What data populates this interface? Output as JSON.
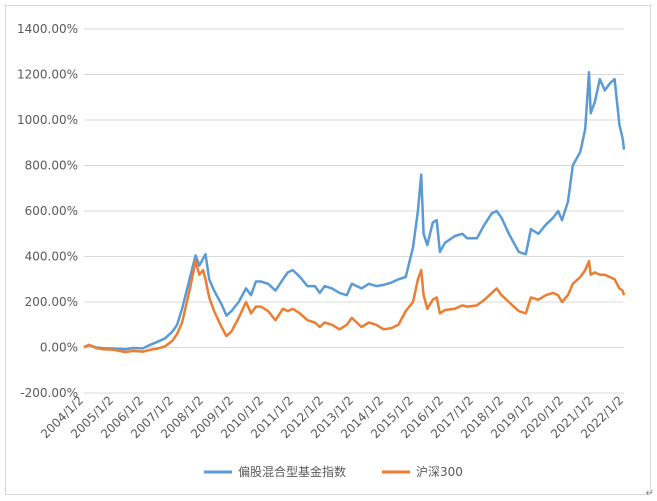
{
  "chart_data": {
    "type": "line",
    "title": "",
    "xlabel": "",
    "ylabel": "",
    "ylim": [
      -200,
      1400
    ],
    "y_ticks": [
      "1400.00%",
      "1200.00%",
      "1000.00%",
      "800.00%",
      "600.00%",
      "400.00%",
      "200.00%",
      "0.00%",
      "-200.00%"
    ],
    "x_ticks": [
      "2004/1/2",
      "2005/1/2",
      "2006/1/2",
      "2007/1/2",
      "2008/1/2",
      "2009/1/2",
      "2010/1/2",
      "2011/1/2",
      "2012/1/2",
      "2013/1/2",
      "2014/1/2",
      "2015/1/2",
      "2016/1/2",
      "2017/1/2",
      "2018/1/2",
      "2019/1/2",
      "2020/1/2",
      "2021/1/2",
      "2022/1/2"
    ],
    "grid": true,
    "legend_position": "bottom",
    "series": [
      {
        "name": "偏股混合型基金指数",
        "color": "#5b9bd5",
        "points": [
          [
            "2004-01-02",
            2
          ],
          [
            "2004-03-01",
            10
          ],
          [
            "2004-06-01",
            0
          ],
          [
            "2004-09-01",
            -3
          ],
          [
            "2005-01-01",
            -5
          ],
          [
            "2005-06-01",
            -8
          ],
          [
            "2005-09-01",
            -2
          ],
          [
            "2006-01-01",
            -4
          ],
          [
            "2006-04-01",
            12
          ],
          [
            "2006-07-01",
            25
          ],
          [
            "2006-10-01",
            40
          ],
          [
            "2007-01-01",
            70
          ],
          [
            "2007-03-01",
            100
          ],
          [
            "2007-05-01",
            170
          ],
          [
            "2007-08-01",
            300
          ],
          [
            "2007-10-15",
            405
          ],
          [
            "2007-12-01",
            360
          ],
          [
            "2008-01-15",
            390
          ],
          [
            "2008-02-15",
            410
          ],
          [
            "2008-04-01",
            300
          ],
          [
            "2008-06-01",
            250
          ],
          [
            "2008-09-01",
            190
          ],
          [
            "2008-11-01",
            140
          ],
          [
            "2009-01-01",
            160
          ],
          [
            "2009-04-01",
            200
          ],
          [
            "2009-07-01",
            260
          ],
          [
            "2009-09-01",
            230
          ],
          [
            "2009-11-01",
            290
          ],
          [
            "2010-01-01",
            290
          ],
          [
            "2010-04-01",
            280
          ],
          [
            "2010-07-01",
            250
          ],
          [
            "2010-10-01",
            300
          ],
          [
            "2010-12-01",
            330
          ],
          [
            "2011-02-01",
            340
          ],
          [
            "2011-05-01",
            310
          ],
          [
            "2011-08-01",
            270
          ],
          [
            "2011-11-01",
            270
          ],
          [
            "2012-01-01",
            240
          ],
          [
            "2012-03-01",
            270
          ],
          [
            "2012-06-01",
            260
          ],
          [
            "2012-09-01",
            240
          ],
          [
            "2012-12-01",
            230
          ],
          [
            "2013-02-01",
            280
          ],
          [
            "2013-06-01",
            260
          ],
          [
            "2013-09-01",
            280
          ],
          [
            "2013-12-01",
            270
          ],
          [
            "2014-03-01",
            275
          ],
          [
            "2014-06-01",
            285
          ],
          [
            "2014-09-01",
            300
          ],
          [
            "2014-12-01",
            310
          ],
          [
            "2015-03-01",
            440
          ],
          [
            "2015-05-01",
            600
          ],
          [
            "2015-06-10",
            760
          ],
          [
            "2015-07-10",
            500
          ],
          [
            "2015-08-25",
            450
          ],
          [
            "2015-11-01",
            550
          ],
          [
            "2015-12-20",
            560
          ],
          [
            "2016-01-28",
            420
          ],
          [
            "2016-04-01",
            460
          ],
          [
            "2016-08-01",
            490
          ],
          [
            "2016-11-01",
            500
          ],
          [
            "2017-01-01",
            480
          ],
          [
            "2017-05-01",
            480
          ],
          [
            "2017-08-01",
            540
          ],
          [
            "2017-11-01",
            590
          ],
          [
            "2018-01-01",
            600
          ],
          [
            "2018-03-01",
            570
          ],
          [
            "2018-06-01",
            500
          ],
          [
            "2018-10-01",
            420
          ],
          [
            "2018-12-28",
            410
          ],
          [
            "2019-03-01",
            520
          ],
          [
            "2019-06-01",
            500
          ],
          [
            "2019-09-01",
            540
          ],
          [
            "2019-12-01",
            570
          ],
          [
            "2020-02-01",
            600
          ],
          [
            "2020-03-20",
            560
          ],
          [
            "2020-06-01",
            640
          ],
          [
            "2020-08-01",
            800
          ],
          [
            "2020-11-01",
            860
          ],
          [
            "2021-01-01",
            960
          ],
          [
            "2021-02-18",
            1210
          ],
          [
            "2021-03-10",
            1030
          ],
          [
            "2021-05-01",
            1080
          ],
          [
            "2021-07-01",
            1180
          ],
          [
            "2021-09-01",
            1130
          ],
          [
            "2021-11-01",
            1160
          ],
          [
            "2022-01-01",
            1180
          ],
          [
            "2022-03-01",
            980
          ],
          [
            "2022-04-10",
            920
          ],
          [
            "2022-04-27",
            870
          ]
        ]
      },
      {
        "name": "沪深300",
        "color": "#ed7d31",
        "points": [
          [
            "2004-01-02",
            0
          ],
          [
            "2004-03-01",
            12
          ],
          [
            "2004-06-01",
            -2
          ],
          [
            "2004-09-01",
            -8
          ],
          [
            "2005-01-01",
            -10
          ],
          [
            "2005-06-01",
            -20
          ],
          [
            "2005-09-01",
            -15
          ],
          [
            "2006-01-01",
            -18
          ],
          [
            "2006-04-01",
            -10
          ],
          [
            "2006-07-01",
            -5
          ],
          [
            "2006-10-01",
            5
          ],
          [
            "2007-01-01",
            30
          ],
          [
            "2007-03-01",
            60
          ],
          [
            "2007-05-01",
            110
          ],
          [
            "2007-08-01",
            250
          ],
          [
            "2007-10-15",
            380
          ],
          [
            "2007-12-01",
            320
          ],
          [
            "2008-01-15",
            340
          ],
          [
            "2008-02-15",
            300
          ],
          [
            "2008-04-01",
            220
          ],
          [
            "2008-06-01",
            160
          ],
          [
            "2008-09-01",
            90
          ],
          [
            "2008-11-01",
            50
          ],
          [
            "2009-01-01",
            70
          ],
          [
            "2009-04-01",
            130
          ],
          [
            "2009-07-01",
            200
          ],
          [
            "2009-09-01",
            150
          ],
          [
            "2009-11-01",
            180
          ],
          [
            "2010-01-01",
            180
          ],
          [
            "2010-04-01",
            160
          ],
          [
            "2010-07-01",
            120
          ],
          [
            "2010-10-01",
            170
          ],
          [
            "2010-12-01",
            160
          ],
          [
            "2011-02-01",
            170
          ],
          [
            "2011-05-01",
            150
          ],
          [
            "2011-08-01",
            120
          ],
          [
            "2011-11-01",
            110
          ],
          [
            "2012-01-01",
            90
          ],
          [
            "2012-03-01",
            110
          ],
          [
            "2012-06-01",
            100
          ],
          [
            "2012-09-01",
            80
          ],
          [
            "2012-12-01",
            100
          ],
          [
            "2013-02-01",
            130
          ],
          [
            "2013-06-01",
            90
          ],
          [
            "2013-09-01",
            110
          ],
          [
            "2013-12-01",
            100
          ],
          [
            "2014-03-01",
            80
          ],
          [
            "2014-06-01",
            85
          ],
          [
            "2014-09-01",
            100
          ],
          [
            "2014-12-01",
            160
          ],
          [
            "2015-03-01",
            200
          ],
          [
            "2015-05-01",
            300
          ],
          [
            "2015-06-10",
            340
          ],
          [
            "2015-07-10",
            230
          ],
          [
            "2015-08-25",
            170
          ],
          [
            "2015-11-01",
            210
          ],
          [
            "2015-12-20",
            220
          ],
          [
            "2016-01-28",
            150
          ],
          [
            "2016-04-01",
            165
          ],
          [
            "2016-08-01",
            170
          ],
          [
            "2016-11-01",
            185
          ],
          [
            "2017-01-01",
            180
          ],
          [
            "2017-05-01",
            185
          ],
          [
            "2017-08-01",
            210
          ],
          [
            "2017-11-01",
            240
          ],
          [
            "2018-01-01",
            260
          ],
          [
            "2018-03-01",
            230
          ],
          [
            "2018-06-01",
            200
          ],
          [
            "2018-10-01",
            160
          ],
          [
            "2018-12-28",
            150
          ],
          [
            "2019-03-01",
            220
          ],
          [
            "2019-06-01",
            210
          ],
          [
            "2019-09-01",
            230
          ],
          [
            "2019-12-01",
            240
          ],
          [
            "2020-02-01",
            230
          ],
          [
            "2020-03-20",
            200
          ],
          [
            "2020-06-01",
            230
          ],
          [
            "2020-08-01",
            280
          ],
          [
            "2020-11-01",
            310
          ],
          [
            "2021-01-01",
            340
          ],
          [
            "2021-02-18",
            380
          ],
          [
            "2021-03-10",
            320
          ],
          [
            "2021-05-01",
            330
          ],
          [
            "2021-07-01",
            320
          ],
          [
            "2021-09-01",
            320
          ],
          [
            "2021-11-01",
            310
          ],
          [
            "2022-01-01",
            300
          ],
          [
            "2022-03-01",
            260
          ],
          [
            "2022-04-10",
            250
          ],
          [
            "2022-04-27",
            230
          ]
        ]
      }
    ]
  },
  "corner_mark": "↵"
}
